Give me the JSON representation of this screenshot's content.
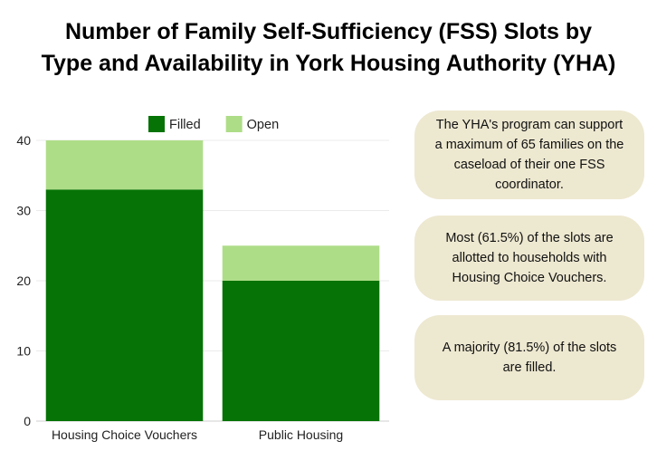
{
  "title_lines": [
    "Number of Family Self-Sufficiency (FSS) Slots by",
    "Type and Availability in York Housing Authority (YHA)"
  ],
  "notes": [
    "The YHA's program can support a maximum of 65 families on the caseload of their one FSS coordinator.",
    "Most (61.5%) of the slots are allotted to households with Housing Choice Vouchers.",
    "A majority (81.5%) of the slots are filled."
  ],
  "chart_data": {
    "type": "bar",
    "stacked": true,
    "title": "Number of Family Self-Sufficiency (FSS) Slots by Type and Availability in York Housing Authority (YHA)",
    "categories": [
      "Housing Choice Vouchers",
      "Public Housing"
    ],
    "series": [
      {
        "name": "Filled",
        "values": [
          33,
          20
        ],
        "color": "#057305"
      },
      {
        "name": "Open",
        "values": [
          7,
          5
        ],
        "color": "#aedd88"
      }
    ],
    "ylim": [
      0,
      40
    ],
    "yticks": [
      0,
      10,
      20,
      30,
      40
    ],
    "grid": true,
    "legend": "top"
  }
}
